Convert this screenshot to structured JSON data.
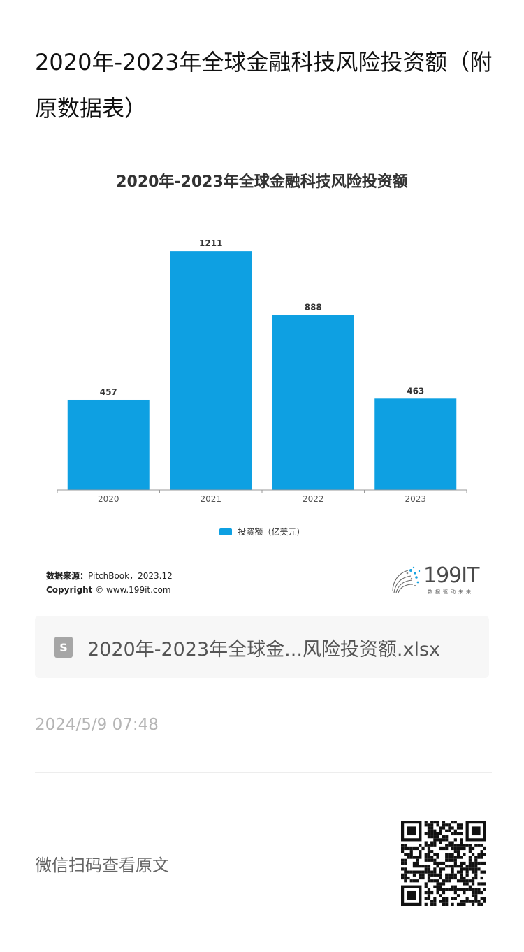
{
  "article": {
    "title": "2020年-2023年全球金融科技风险投资额（附原数据表）"
  },
  "chart_data": {
    "type": "bar",
    "title": "2020年-2023年全球金融科技风险投资额",
    "categories": [
      "2020",
      "2021",
      "2022",
      "2023"
    ],
    "series": [
      {
        "name": "投资额（亿美元）",
        "values": [
          457,
          1211,
          888,
          463
        ]
      }
    ],
    "ylim": [
      0,
      1300
    ],
    "grid": false,
    "legend": "bottom-center",
    "colors": {
      "bar": "#0ea0e2",
      "axis": "#999999",
      "label": "#333333"
    }
  },
  "chart_footer": {
    "source_label": "数据来源：",
    "source_value": "PitchBook，2023.12",
    "copyright_label": "Copyright",
    "copyright_value": "© www.199it.com",
    "brand_name": "199IT",
    "brand_tagline": "数据驱动未来"
  },
  "attachment": {
    "icon": "file-s-icon",
    "file_name": "2020年-2023年全球金...风险投资额.xlsx"
  },
  "meta": {
    "timestamp": "2024/5/9 07:48"
  },
  "qr": {
    "hint": "微信扫码查看原文",
    "icon": "qr-code-icon"
  }
}
